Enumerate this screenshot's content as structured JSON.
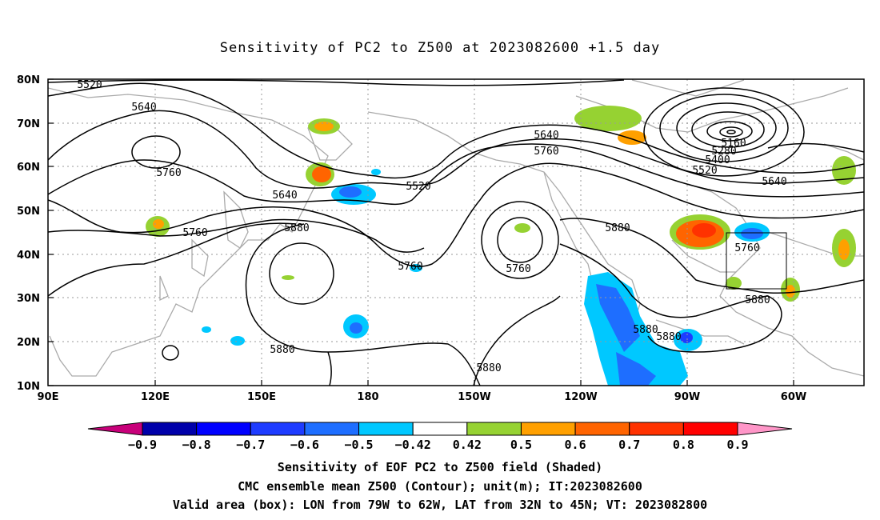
{
  "title": "Sensitivity of PC2 to Z500 at 2023082600 +1.5 day",
  "lat_labels": [
    "80N",
    "70N",
    "60N",
    "50N",
    "40N",
    "30N",
    "20N",
    "10N"
  ],
  "lon_labels": [
    "90E",
    "120E",
    "150E",
    "180",
    "150W",
    "120W",
    "90W",
    "60W"
  ],
  "contour_labels": [
    {
      "text": "5520"
    },
    {
      "text": "5640"
    },
    {
      "text": "5760"
    },
    {
      "text": "5640"
    },
    {
      "text": "5760"
    },
    {
      "text": "5880"
    },
    {
      "text": "5880"
    },
    {
      "text": "5520"
    },
    {
      "text": "5760"
    },
    {
      "text": "5640"
    },
    {
      "text": "5760"
    },
    {
      "text": "5760"
    },
    {
      "text": "5880"
    },
    {
      "text": "5880"
    },
    {
      "text": "5880"
    },
    {
      "text": "5880"
    },
    {
      "text": "5880"
    },
    {
      "text": "5160"
    },
    {
      "text": "5280"
    },
    {
      "text": "5400"
    },
    {
      "text": "5520"
    },
    {
      "text": "5640"
    },
    {
      "text": "5760"
    },
    {
      "text": "5880"
    }
  ],
  "colorbar": {
    "labels": [
      "-0.9",
      "-0.8",
      "-0.7",
      "-0.6",
      "-0.5",
      "-0.42",
      "0.42",
      "0.5",
      "0.6",
      "0.7",
      "0.8",
      "0.9"
    ],
    "colors": [
      "#c8007a",
      "#0000aa",
      "#0000ff",
      "#1e3cff",
      "#1e6eff",
      "#00c8ff",
      "#ffffff",
      "#96d232",
      "#ffa000",
      "#ff6400",
      "#ff3200",
      "#ff0000",
      "#ff96c8"
    ]
  },
  "captions": [
    "Sensitivity of EOF PC2 to Z500 field (Shaded)",
    "CMC ensemble mean Z500 (Contour); unit(m); IT:2023082600",
    "Valid area (box): LON from 79W to 62W, LAT from 32N to 45N; VT: 2023082800"
  ]
}
